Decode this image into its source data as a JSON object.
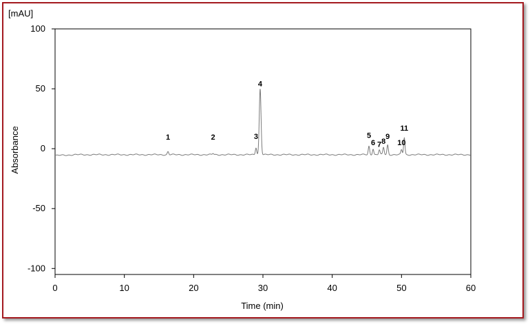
{
  "chart_data": {
    "type": "line",
    "title": "",
    "unit_label": "[mAU]",
    "xlabel": "Time (min)",
    "ylabel": "Absorbance",
    "xlim": [
      0,
      60
    ],
    "ylim": [
      -105,
      100
    ],
    "xticks": [
      0,
      10,
      20,
      30,
      40,
      50,
      60
    ],
    "yticks": [
      -100,
      -50,
      0,
      50,
      100
    ],
    "grid": false,
    "series_color": "#7a7a7a",
    "baseline": -5,
    "peaks": [
      {
        "label": "1",
        "x": 16.3,
        "y": -2.5,
        "label_y": 7.5
      },
      {
        "label": "2",
        "x": 22.8,
        "y": -4,
        "label_y": 7.5
      },
      {
        "label": "3",
        "x": 29.0,
        "y": 1,
        "label_y": 8
      },
      {
        "label": "4",
        "x": 29.6,
        "y": 50,
        "label_y": 52
      },
      {
        "label": "5",
        "x": 45.3,
        "y": 2,
        "label_y": 9
      },
      {
        "label": "6",
        "x": 45.9,
        "y": 0,
        "label_y": 3
      },
      {
        "label": "7",
        "x": 46.8,
        "y": -1,
        "label_y": 1.5
      },
      {
        "label": "8",
        "x": 47.4,
        "y": 1,
        "label_y": 4
      },
      {
        "label": "9",
        "x": 48.0,
        "y": 3,
        "label_y": 8
      },
      {
        "label": "10",
        "x": 50.0,
        "y": -1,
        "label_y": 3
      },
      {
        "label": "11",
        "x": 50.4,
        "y": 9,
        "label_y": 15
      }
    ]
  }
}
